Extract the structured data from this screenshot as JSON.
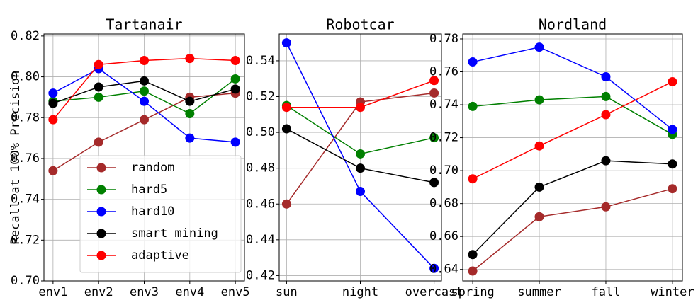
{
  "chart_data": [
    {
      "type": "line",
      "title": "Tartanair",
      "ylabel": "Recall at 100% Precision",
      "categories": [
        "env1",
        "env2",
        "env3",
        "env4",
        "env5"
      ],
      "ylim": [
        0.7,
        0.821
      ],
      "yticks": [
        {
          "value": 0.7,
          "label": "0.70"
        },
        0.72,
        0.74,
        0.76,
        0.78,
        {
          "value": 0.8,
          "label": "0.80"
        },
        0.82
      ],
      "grid": true,
      "legend": "lower right",
      "series": [
        {
          "name": "random",
          "color": "#a52a2a",
          "values": [
            0.754,
            0.768,
            0.779,
            0.79,
            0.792
          ]
        },
        {
          "name": "hard5",
          "color": "#008000",
          "values": [
            0.788,
            0.79,
            0.793,
            0.782,
            0.799
          ]
        },
        {
          "name": "hard10",
          "color": "#0000ff",
          "values": [
            0.792,
            0.804,
            0.788,
            0.77,
            0.768
          ]
        },
        {
          "name": "smart mining",
          "color": "#000000",
          "values": [
            0.787,
            0.795,
            0.798,
            0.788,
            0.794
          ]
        },
        {
          "name": "adaptive",
          "color": "#ff0000",
          "values": [
            0.779,
            0.806,
            0.808,
            0.809,
            0.808
          ]
        }
      ]
    },
    {
      "type": "line",
      "title": "Robotcar",
      "categories": [
        "sun",
        "night",
        "overcast"
      ],
      "ylim": [
        0.417,
        0.555
      ],
      "yticks": [
        0.42,
        0.44,
        0.46,
        0.48,
        {
          "value": 0.5,
          "label": "0.50"
        },
        0.52,
        0.54
      ],
      "grid": true,
      "series": [
        {
          "color": "#a52a2a",
          "values": [
            0.46,
            0.517,
            0.522
          ]
        },
        {
          "color": "#008000",
          "values": [
            0.515,
            0.488,
            0.497
          ]
        },
        {
          "color": "#0000ff",
          "values": [
            0.55,
            0.467,
            0.424
          ]
        },
        {
          "color": "#000000",
          "values": [
            0.502,
            0.48,
            0.472
          ]
        },
        {
          "color": "#ff0000",
          "values": [
            0.514,
            0.514,
            0.529
          ]
        }
      ]
    },
    {
      "type": "line",
      "title": "Nordland",
      "categories": [
        "spring",
        "summer",
        "fall",
        "winter"
      ],
      "ylim": [
        0.633,
        0.783
      ],
      "yticks": [
        0.64,
        0.66,
        0.68,
        {
          "value": 0.7,
          "label": "0.70"
        },
        0.72,
        0.74,
        0.76,
        0.78
      ],
      "grid": true,
      "series": [
        {
          "color": "#a52a2a",
          "values": [
            0.639,
            0.672,
            0.678,
            0.689
          ]
        },
        {
          "color": "#008000",
          "values": [
            0.739,
            0.743,
            0.745,
            0.722
          ]
        },
        {
          "color": "#0000ff",
          "values": [
            0.766,
            0.775,
            0.757,
            0.725
          ]
        },
        {
          "color": "#000000",
          "values": [
            0.649,
            0.69,
            0.706,
            0.704
          ]
        },
        {
          "color": "#ff0000",
          "values": [
            0.695,
            0.715,
            0.734,
            0.754
          ]
        }
      ]
    }
  ]
}
